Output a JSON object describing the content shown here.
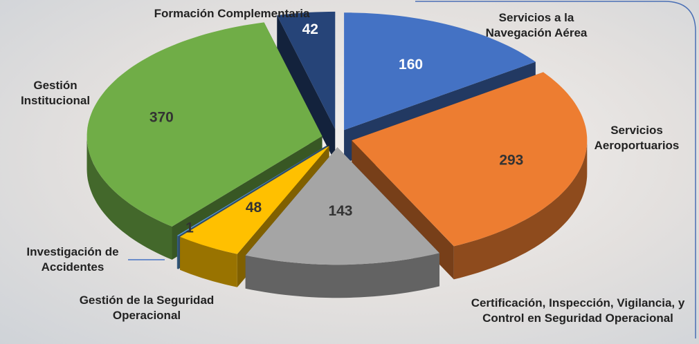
{
  "chart_data": {
    "type": "pie3d",
    "categories": [
      "Servicios a la Navegación Aérea",
      "Servicios Aeroportuarios",
      "Certificación, Inspección, Vigilancia, y Control en Seguridad Operacional",
      "Gestión de la Seguridad Operacional",
      "Investigación de Accidentes",
      "Gestión Institucional",
      "Formación Complementaria"
    ],
    "values": [
      160,
      293,
      143,
      48,
      1,
      370,
      42
    ],
    "colors": [
      "#4472c4",
      "#ed7d31",
      "#a5a5a5",
      "#ffc000",
      "#5b9bd5",
      "#70ad47",
      "#264478"
    ]
  }
}
